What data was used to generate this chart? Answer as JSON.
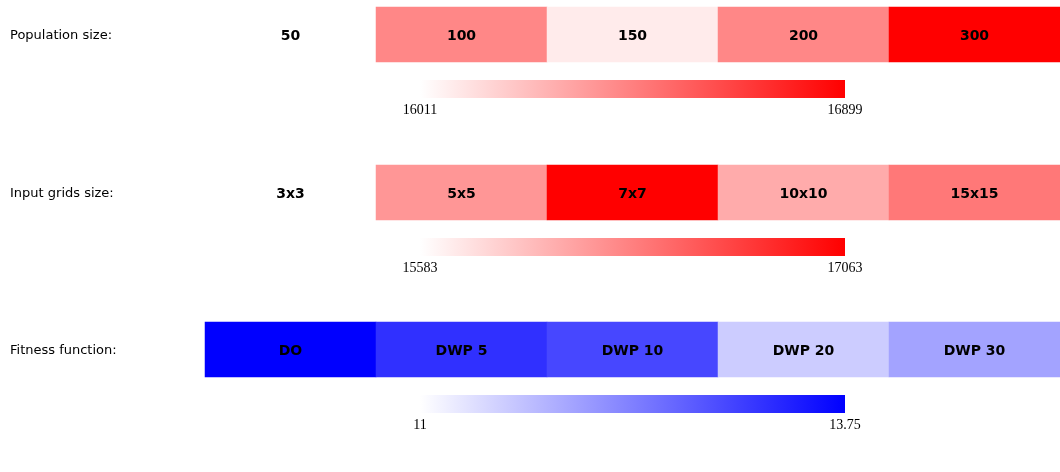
{
  "chart_data": [
    {
      "type": "heatmap",
      "categories": [
        "50",
        "100",
        "150",
        "200",
        "300"
      ],
      "y_categories": [
        "Population size:"
      ],
      "cells": [
        [
          16011,
          16428,
          16082,
          16428,
          16899
        ]
      ],
      "clim": [
        16011,
        16899
      ],
      "cticks": [
        16011,
        16899
      ],
      "color": "#ff0000"
    },
    {
      "type": "heatmap",
      "categories": [
        "3x3",
        "5x5",
        "7x7",
        "10x10",
        "15x15"
      ],
      "y_categories": [
        "Input grids size:"
      ],
      "cells": [
        [
          15583,
          16190,
          17063,
          16071,
          16367
        ]
      ],
      "clim": [
        15583,
        17063
      ],
      "cticks": [
        15583,
        17063
      ],
      "color": "#ff0000"
    },
    {
      "type": "heatmap",
      "categories": [
        "DO",
        "DWP 5",
        "DWP 10",
        "DWP 20",
        "DWP 30"
      ],
      "y_categories": [
        "Fitness function:"
      ],
      "cells": [
        [
          13.75,
          13.23,
          12.98,
          11.55,
          11.99
        ]
      ],
      "clim": [
        11,
        13.75
      ],
      "cticks": [
        11,
        13.75
      ],
      "color": "#0000ff"
    }
  ]
}
